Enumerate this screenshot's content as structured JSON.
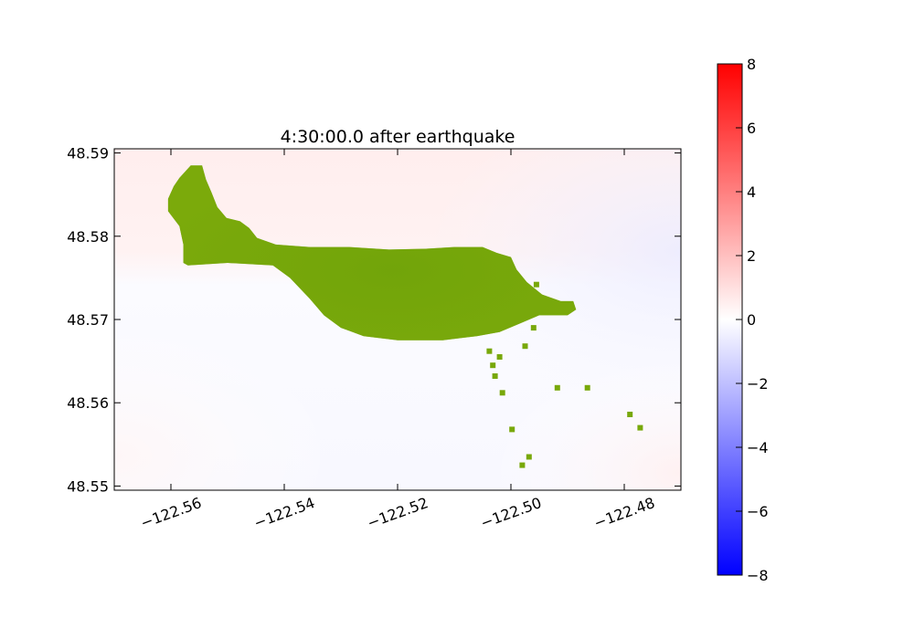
{
  "chart_data": {
    "type": "heatmap",
    "title": "4:30:00.0 after earthquake",
    "xlim": [
      -122.57,
      -122.47
    ],
    "ylim": [
      48.5495,
      48.5905
    ],
    "x_ticks": [
      -122.56,
      -122.54,
      -122.52,
      -122.5,
      -122.48
    ],
    "x_tick_labels": [
      "−122.56",
      "−122.54",
      "−122.52",
      "−122.50",
      "−122.48"
    ],
    "y_ticks": [
      48.55,
      48.56,
      48.57,
      48.58,
      48.59
    ],
    "y_tick_labels": [
      "48.55",
      "48.56",
      "48.57",
      "48.58",
      "48.59"
    ],
    "colorbar": {
      "colormap": "bwr",
      "vmin": -8,
      "vmax": 8,
      "ticks": [
        -8,
        -6,
        -4,
        -2,
        0,
        2,
        4,
        6,
        8
      ],
      "tick_labels": [
        "−8",
        "−6",
        "−4",
        "−2",
        "0",
        "2",
        "4",
        "6",
        "8"
      ]
    },
    "land_color": "#78a80a",
    "field_summary": {
      "north_region_value": 0.3,
      "south_region_value": -0.1,
      "east_region_value": -0.2
    },
    "land_polygon": [
      [
        -122.5605,
        48.583
      ],
      [
        -122.5605,
        48.5845
      ],
      [
        -122.5595,
        48.586
      ],
      [
        -122.5585,
        48.587
      ],
      [
        -122.5565,
        48.5885
      ],
      [
        -122.5545,
        48.5885
      ],
      [
        -122.5538,
        48.5868
      ],
      [
        -122.5528,
        48.5852
      ],
      [
        -122.5518,
        48.5835
      ],
      [
        -122.5502,
        48.5822
      ],
      [
        -122.5478,
        48.5818
      ],
      [
        -122.5462,
        48.581
      ],
      [
        -122.5448,
        48.5798
      ],
      [
        -122.5415,
        48.579
      ],
      [
        -122.5355,
        48.5787
      ],
      [
        -122.5285,
        48.5787
      ],
      [
        -122.5215,
        48.5784
      ],
      [
        -122.515,
        48.5785
      ],
      [
        -122.51,
        48.5787
      ],
      [
        -122.505,
        48.5787
      ],
      [
        -122.5025,
        48.578
      ],
      [
        -122.5,
        48.5775
      ],
      [
        -122.499,
        48.576
      ],
      [
        -122.4972,
        48.5745
      ],
      [
        -122.4945,
        48.573
      ],
      [
        -122.4912,
        48.5722
      ],
      [
        -122.489,
        48.5722
      ],
      [
        -122.4885,
        48.5712
      ],
      [
        -122.49,
        48.5705
      ],
      [
        -122.495,
        48.5705
      ],
      [
        -122.4985,
        48.5695
      ],
      [
        -122.502,
        48.5685
      ],
      [
        -122.506,
        48.568
      ],
      [
        -122.512,
        48.5675
      ],
      [
        -122.52,
        48.5675
      ],
      [
        -122.526,
        48.568
      ],
      [
        -122.53,
        48.569
      ],
      [
        -122.533,
        48.5705
      ],
      [
        -122.5355,
        48.5725
      ],
      [
        -122.539,
        48.575
      ],
      [
        -122.542,
        48.5765
      ],
      [
        -122.55,
        48.5768
      ],
      [
        -122.557,
        48.5765
      ],
      [
        -122.5578,
        48.5768
      ],
      [
        -122.5578,
        48.579
      ],
      [
        -122.5585,
        48.5812
      ]
    ],
    "land_specks": [
      [
        -122.502,
        48.5655
      ],
      [
        -122.5038,
        48.5662
      ],
      [
        -122.5032,
        48.5645
      ],
      [
        -122.5028,
        48.5632
      ],
      [
        -122.5015,
        48.5612
      ],
      [
        -122.4998,
        48.5568
      ],
      [
        -122.4968,
        48.5535
      ],
      [
        -122.498,
        48.5525
      ],
      [
        -122.4918,
        48.5618
      ],
      [
        -122.4865,
        48.5618
      ],
      [
        -122.479,
        48.5586
      ],
      [
        -122.4772,
        48.557
      ],
      [
        -122.4975,
        48.5668
      ],
      [
        -122.496,
        48.569
      ],
      [
        -122.4955,
        48.5742
      ]
    ]
  }
}
